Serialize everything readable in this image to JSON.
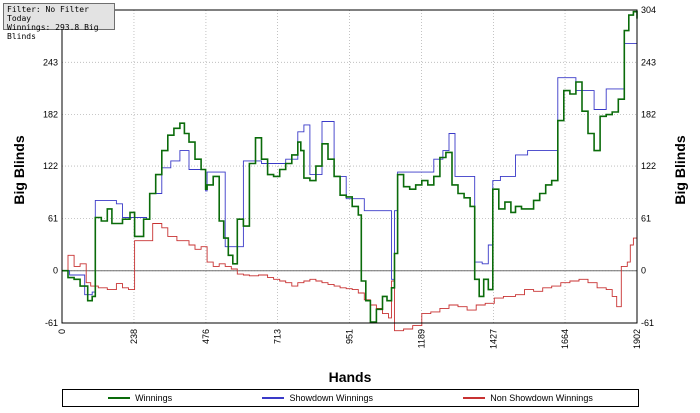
{
  "info": {
    "filter": "Filter: No Filter",
    "period": "Today",
    "winnings": "Winnings: 293.8 Big Blinds"
  },
  "chart_data": {
    "type": "line",
    "xlabel": "Hands",
    "ylabel_left": "Big Blinds",
    "ylabel_right": "Big Blinds",
    "xlim": [
      0,
      1902
    ],
    "ylim": [
      -61,
      304
    ],
    "x_ticks": [
      "0",
      "238",
      "476",
      "713",
      "951",
      "1189",
      "1427",
      "1664",
      "1902"
    ],
    "y_ticks": [
      "304",
      "243",
      "182",
      "122",
      "61",
      "0",
      "-61"
    ],
    "grid": true,
    "legend_position": "bottom",
    "series": [
      {
        "name": "Winnings",
        "color": "#0a6b0a",
        "points": [
          [
            0,
            0
          ],
          [
            20,
            -8
          ],
          [
            40,
            -10
          ],
          [
            60,
            -18
          ],
          [
            85,
            -35
          ],
          [
            100,
            -30
          ],
          [
            110,
            62
          ],
          [
            130,
            58
          ],
          [
            150,
            72
          ],
          [
            165,
            55
          ],
          [
            185,
            55
          ],
          [
            200,
            60
          ],
          [
            225,
            68
          ],
          [
            240,
            40
          ],
          [
            270,
            60
          ],
          [
            290,
            90
          ],
          [
            310,
            112
          ],
          [
            330,
            140
          ],
          [
            350,
            158
          ],
          [
            370,
            166
          ],
          [
            390,
            172
          ],
          [
            405,
            160
          ],
          [
            420,
            150
          ],
          [
            440,
            130
          ],
          [
            460,
            118
          ],
          [
            475,
            95
          ],
          [
            480,
            100
          ],
          [
            500,
            110
          ],
          [
            520,
            58
          ],
          [
            535,
            38
          ],
          [
            550,
            18
          ],
          [
            565,
            8
          ],
          [
            580,
            60
          ],
          [
            600,
            52
          ],
          [
            620,
            125
          ],
          [
            640,
            155
          ],
          [
            660,
            130
          ],
          [
            680,
            112
          ],
          [
            700,
            110
          ],
          [
            720,
            118
          ],
          [
            740,
            125
          ],
          [
            760,
            135
          ],
          [
            780,
            150
          ],
          [
            790,
            140
          ],
          [
            800,
            108
          ],
          [
            820,
            105
          ],
          [
            840,
            122
          ],
          [
            860,
            148
          ],
          [
            880,
            130
          ],
          [
            900,
            110
          ],
          [
            920,
            88
          ],
          [
            940,
            86
          ],
          [
            960,
            75
          ],
          [
            980,
            65
          ],
          [
            990,
            -12
          ],
          [
            1005,
            -35
          ],
          [
            1020,
            -60
          ],
          [
            1040,
            -45
          ],
          [
            1060,
            -30
          ],
          [
            1075,
            -35
          ],
          [
            1090,
            -20
          ],
          [
            1100,
            20
          ],
          [
            1110,
            112
          ],
          [
            1130,
            98
          ],
          [
            1150,
            95
          ],
          [
            1170,
            100
          ],
          [
            1190,
            105
          ],
          [
            1210,
            100
          ],
          [
            1230,
            110
          ],
          [
            1250,
            132
          ],
          [
            1270,
            138
          ],
          [
            1290,
            100
          ],
          [
            1310,
            90
          ],
          [
            1330,
            85
          ],
          [
            1350,
            75
          ],
          [
            1365,
            -10
          ],
          [
            1380,
            -30
          ],
          [
            1395,
            -10
          ],
          [
            1410,
            -22
          ],
          [
            1425,
            95
          ],
          [
            1445,
            72
          ],
          [
            1465,
            80
          ],
          [
            1485,
            68
          ],
          [
            1500,
            75
          ],
          [
            1520,
            72
          ],
          [
            1540,
            72
          ],
          [
            1560,
            82
          ],
          [
            1580,
            90
          ],
          [
            1600,
            100
          ],
          [
            1620,
            105
          ],
          [
            1640,
            175
          ],
          [
            1660,
            210
          ],
          [
            1680,
            206
          ],
          [
            1700,
            220
          ],
          [
            1720,
            186
          ],
          [
            1740,
            160
          ],
          [
            1760,
            140
          ],
          [
            1780,
            180
          ],
          [
            1800,
            182
          ],
          [
            1820,
            185
          ],
          [
            1840,
            200
          ],
          [
            1860,
            280
          ],
          [
            1875,
            298
          ],
          [
            1890,
            302
          ],
          [
            1902,
            294
          ]
        ]
      },
      {
        "name": "Showdown Winnings",
        "color": "#3a3ac8",
        "points": [
          [
            0,
            0
          ],
          [
            25,
            -5
          ],
          [
            50,
            -5
          ],
          [
            75,
            -28
          ],
          [
            100,
            -25
          ],
          [
            110,
            82
          ],
          [
            160,
            82
          ],
          [
            180,
            78
          ],
          [
            200,
            62
          ],
          [
            250,
            62
          ],
          [
            280,
            60
          ],
          [
            290,
            90
          ],
          [
            330,
            120
          ],
          [
            360,
            128
          ],
          [
            390,
            140
          ],
          [
            420,
            118
          ],
          [
            460,
            118
          ],
          [
            475,
            93
          ],
          [
            480,
            115
          ],
          [
            520,
            115
          ],
          [
            540,
            28
          ],
          [
            560,
            28
          ],
          [
            600,
            128
          ],
          [
            640,
            128
          ],
          [
            660,
            125
          ],
          [
            700,
            125
          ],
          [
            740,
            130
          ],
          [
            780,
            162
          ],
          [
            800,
            170
          ],
          [
            820,
            112
          ],
          [
            840,
            112
          ],
          [
            860,
            174
          ],
          [
            900,
            110
          ],
          [
            940,
            84
          ],
          [
            980,
            84
          ],
          [
            1000,
            70
          ],
          [
            1020,
            70
          ],
          [
            1060,
            70
          ],
          [
            1090,
            -10
          ],
          [
            1100,
            70
          ],
          [
            1110,
            115
          ],
          [
            1200,
            115
          ],
          [
            1230,
            130
          ],
          [
            1260,
            140
          ],
          [
            1280,
            160
          ],
          [
            1300,
            110
          ],
          [
            1340,
            110
          ],
          [
            1365,
            10
          ],
          [
            1390,
            8
          ],
          [
            1410,
            30
          ],
          [
            1425,
            105
          ],
          [
            1450,
            110
          ],
          [
            1500,
            135
          ],
          [
            1540,
            140
          ],
          [
            1600,
            140
          ],
          [
            1640,
            225
          ],
          [
            1680,
            225
          ],
          [
            1700,
            210
          ],
          [
            1740,
            210
          ],
          [
            1760,
            188
          ],
          [
            1800,
            212
          ],
          [
            1840,
            212
          ],
          [
            1860,
            265
          ],
          [
            1880,
            265
          ],
          [
            1902,
            265
          ]
        ]
      },
      {
        "name": "Non Showdown Winnings",
        "color": "#c83232",
        "points": [
          [
            0,
            0
          ],
          [
            20,
            18
          ],
          [
            40,
            5
          ],
          [
            60,
            8
          ],
          [
            80,
            -14
          ],
          [
            95,
            -18
          ],
          [
            120,
            -20
          ],
          [
            150,
            -22
          ],
          [
            180,
            -15
          ],
          [
            200,
            -20
          ],
          [
            220,
            -22
          ],
          [
            240,
            35
          ],
          [
            270,
            35
          ],
          [
            300,
            55
          ],
          [
            330,
            50
          ],
          [
            350,
            40
          ],
          [
            380,
            35
          ],
          [
            420,
            30
          ],
          [
            440,
            25
          ],
          [
            460,
            28
          ],
          [
            480,
            10
          ],
          [
            500,
            5
          ],
          [
            520,
            8
          ],
          [
            540,
            5
          ],
          [
            560,
            2
          ],
          [
            580,
            -4
          ],
          [
            600,
            -5
          ],
          [
            620,
            -6
          ],
          [
            650,
            -5
          ],
          [
            680,
            -8
          ],
          [
            700,
            -10
          ],
          [
            720,
            -12
          ],
          [
            740,
            -14
          ],
          [
            760,
            -18
          ],
          [
            780,
            -14
          ],
          [
            800,
            -12
          ],
          [
            820,
            -10
          ],
          [
            840,
            -12
          ],
          [
            860,
            -14
          ],
          [
            880,
            -16
          ],
          [
            900,
            -18
          ],
          [
            920,
            -20
          ],
          [
            940,
            -21
          ],
          [
            960,
            -22
          ],
          [
            980,
            -26
          ],
          [
            1000,
            -34
          ],
          [
            1020,
            -40
          ],
          [
            1040,
            -44
          ],
          [
            1060,
            -50
          ],
          [
            1080,
            -55
          ],
          [
            1090,
            -12
          ],
          [
            1100,
            -70
          ],
          [
            1130,
            -68
          ],
          [
            1160,
            -64
          ],
          [
            1190,
            -50
          ],
          [
            1220,
            -48
          ],
          [
            1250,
            -44
          ],
          [
            1280,
            -40
          ],
          [
            1310,
            -42
          ],
          [
            1340,
            -46
          ],
          [
            1370,
            -40
          ],
          [
            1400,
            -38
          ],
          [
            1430,
            -32
          ],
          [
            1460,
            -30
          ],
          [
            1500,
            -28
          ],
          [
            1530,
            -22
          ],
          [
            1560,
            -24
          ],
          [
            1590,
            -20
          ],
          [
            1620,
            -18
          ],
          [
            1650,
            -14
          ],
          [
            1680,
            -12
          ],
          [
            1710,
            -10
          ],
          [
            1740,
            -14
          ],
          [
            1770,
            -20
          ],
          [
            1800,
            -22
          ],
          [
            1820,
            -30
          ],
          [
            1835,
            -42
          ],
          [
            1850,
            5
          ],
          [
            1870,
            10
          ],
          [
            1880,
            30
          ],
          [
            1890,
            38
          ],
          [
            1902,
            36
          ]
        ]
      }
    ]
  }
}
